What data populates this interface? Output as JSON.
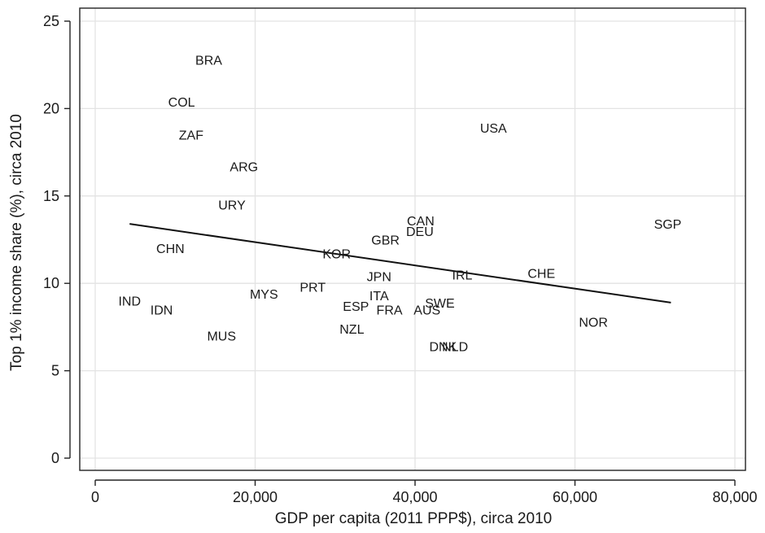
{
  "chart_data": {
    "type": "scatter",
    "xlabel": "GDP per capita (2011 PPP$), circa 2010",
    "ylabel": "Top 1% income share (%), circa 2010",
    "xlim": [
      0,
      80000
    ],
    "ylim": [
      0,
      25
    ],
    "xticks": [
      0,
      20000,
      40000,
      60000,
      80000
    ],
    "xtick_labels": [
      "0",
      "20,000",
      "40,000",
      "60,000",
      "80,000"
    ],
    "yticks": [
      0,
      5,
      10,
      15,
      20,
      25
    ],
    "ytick_labels": [
      "0",
      "5",
      "10",
      "15",
      "20",
      "25"
    ],
    "grid": true,
    "marker": "country code label",
    "points": [
      {
        "label": "BRA",
        "x": 14200,
        "y": 22.8
      },
      {
        "label": "COL",
        "x": 10800,
        "y": 20.4
      },
      {
        "label": "ZAF",
        "x": 12000,
        "y": 18.5
      },
      {
        "label": "ARG",
        "x": 18600,
        "y": 16.7
      },
      {
        "label": "URY",
        "x": 17100,
        "y": 14.5
      },
      {
        "label": "USA",
        "x": 49800,
        "y": 18.9
      },
      {
        "label": "CHN",
        "x": 9400,
        "y": 12.0
      },
      {
        "label": "SGP",
        "x": 71600,
        "y": 13.4
      },
      {
        "label": "CAN",
        "x": 40700,
        "y": 13.6
      },
      {
        "label": "DEU",
        "x": 40600,
        "y": 13.0
      },
      {
        "label": "GBR",
        "x": 36300,
        "y": 12.5
      },
      {
        "label": "KOR",
        "x": 30200,
        "y": 11.7
      },
      {
        "label": "JPN",
        "x": 35500,
        "y": 10.4
      },
      {
        "label": "IRL",
        "x": 45900,
        "y": 10.5
      },
      {
        "label": "CHE",
        "x": 55800,
        "y": 10.6
      },
      {
        "label": "ITA",
        "x": 35500,
        "y": 9.3
      },
      {
        "label": "PRT",
        "x": 27200,
        "y": 9.8
      },
      {
        "label": "MYS",
        "x": 21100,
        "y": 9.4
      },
      {
        "label": "IND",
        "x": 4300,
        "y": 9.0
      },
      {
        "label": "IDN",
        "x": 8300,
        "y": 8.5
      },
      {
        "label": "ESP",
        "x": 32600,
        "y": 8.7
      },
      {
        "label": "FRA",
        "x": 36800,
        "y": 8.5
      },
      {
        "label": "SWE",
        "x": 43100,
        "y": 8.9
      },
      {
        "label": "AUS",
        "x": 41500,
        "y": 8.5
      },
      {
        "label": "NOR",
        "x": 62300,
        "y": 7.8
      },
      {
        "label": "NZL",
        "x": 32100,
        "y": 7.4
      },
      {
        "label": "MUS",
        "x": 15800,
        "y": 7.0
      },
      {
        "label": "DNK",
        "x": 43500,
        "y": 6.4
      },
      {
        "label": "NLD",
        "x": 45000,
        "y": 6.4
      }
    ],
    "fit_line": {
      "x": [
        4300,
        72000
      ],
      "y": [
        13.4,
        8.9
      ]
    }
  }
}
